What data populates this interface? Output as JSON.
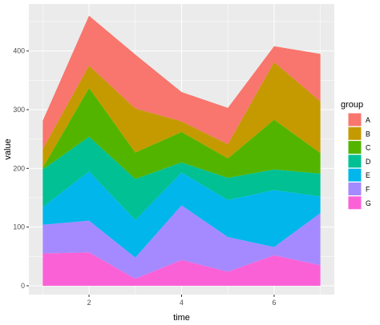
{
  "chart_data": {
    "type": "area",
    "stacked": true,
    "xlabel": "time",
    "ylabel": "value",
    "xlim": [
      0.7,
      7.3
    ],
    "ylim": [
      -15,
      480
    ],
    "x_ticks": [
      2,
      4,
      6
    ],
    "y_ticks": [
      0,
      100,
      200,
      300,
      400
    ],
    "grid": true,
    "legend_title": "group",
    "legend_position": "right",
    "x": [
      1,
      2,
      3,
      4,
      5,
      6,
      7
    ],
    "series": [
      {
        "name": "A",
        "color": "#F8766D",
        "values": [
          48,
          85,
          92,
          50,
          62,
          27,
          81
        ]
      },
      {
        "name": "B",
        "color": "#C49A00",
        "values": [
          32,
          38,
          75,
          18,
          24,
          98,
          88
        ]
      },
      {
        "name": "C",
        "color": "#53B400",
        "values": [
          3,
          83,
          45,
          52,
          33,
          85,
          35
        ]
      },
      {
        "name": "D",
        "color": "#00C094",
        "values": [
          64,
          59,
          70,
          17,
          38,
          35,
          39
        ]
      },
      {
        "name": "E",
        "color": "#00B6EB",
        "values": [
          30,
          84,
          64,
          56,
          63,
          97,
          28
        ]
      },
      {
        "name": "F",
        "color": "#A58AFF",
        "values": [
          49,
          54,
          36,
          93,
          59,
          14,
          89
        ]
      },
      {
        "name": "G",
        "color": "#FB61D7",
        "values": [
          55,
          57,
          12,
          44,
          24,
          52,
          35
        ]
      }
    ]
  }
}
